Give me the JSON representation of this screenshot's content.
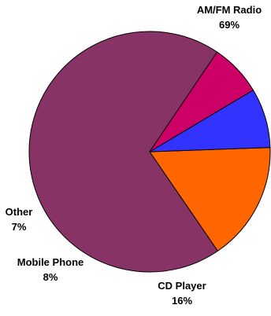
{
  "chart_data": {
    "type": "pie",
    "title": "",
    "slices": [
      {
        "label": "AM/FM Radio",
        "value": 69,
        "value_label": "69%",
        "color": "#883366"
      },
      {
        "label": "CD Player",
        "value": 16,
        "value_label": "16%",
        "color": "#ff6600"
      },
      {
        "label": "Mobile Phone",
        "value": 8,
        "value_label": "8%",
        "color": "#3333ff"
      },
      {
        "label": "Other",
        "value": 7,
        "value_label": "7%",
        "color": "#cc0066"
      }
    ],
    "legend": "none"
  }
}
